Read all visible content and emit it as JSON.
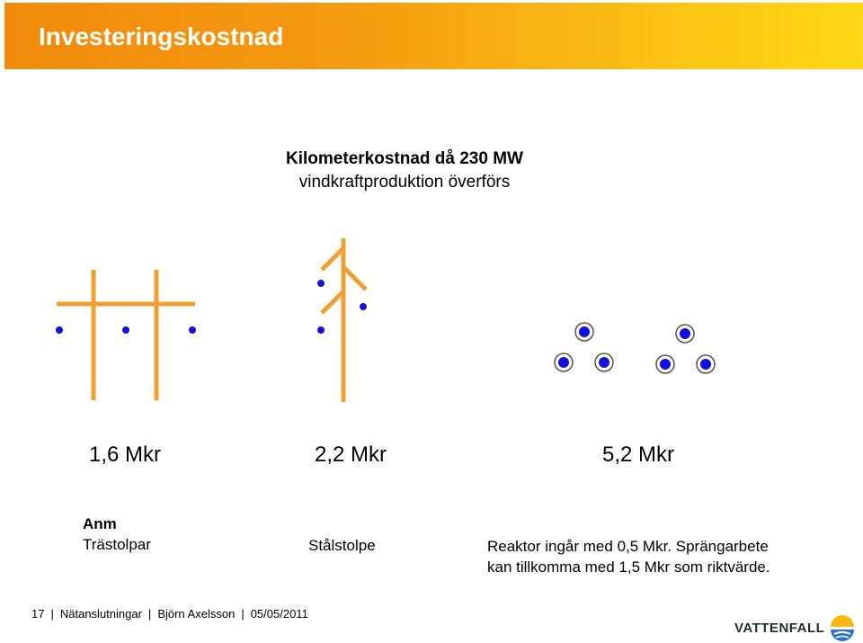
{
  "header": {
    "title": "Investeringskostnad"
  },
  "figure": {
    "title_line1": "Kilometerkostnad då 230 MW",
    "title_line2": "vindkraftproduktion överförs"
  },
  "options": [
    {
      "cost": "1,6 Mkr",
      "label": "Trästolpar"
    },
    {
      "cost": "2,2 Mkr",
      "label": "Stålstolpe"
    },
    {
      "cost": "5,2 Mkr",
      "label_line1": "Reaktor ingår med 0,5 Mkr. Sprängarbete",
      "label_line2": "kan tillkomma med 1,5 Mkr som riktvärde."
    }
  ],
  "note_heading": "Anm",
  "footer": {
    "page": "17",
    "section": "Nätanslutningar",
    "author": "Björn Axelsson",
    "date": "05/05/2011"
  },
  "logo": {
    "text": "VATTENFALL",
    "icon": "vattenfall-logo-icon"
  },
  "colors": {
    "header_start": "#f28b0c",
    "header_end": "#fed915",
    "pole": "#f0a030",
    "conductor": "#1010e0"
  }
}
